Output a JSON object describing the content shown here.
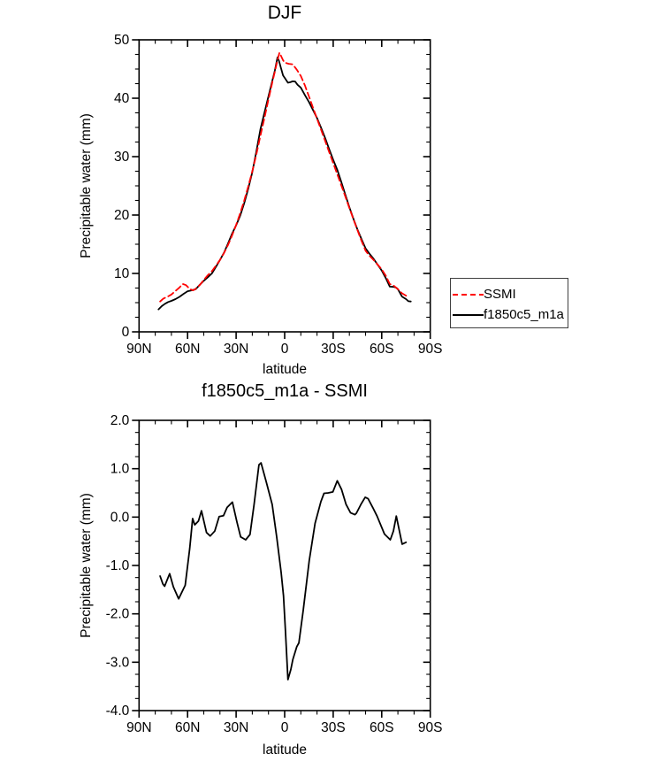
{
  "page": {
    "background": "#ffffff"
  },
  "colors": {
    "ssmi_red": "#ff0000",
    "model_black": "#000000",
    "legend_border": "#3f3f3f"
  },
  "legend": {
    "position": "outside-right-of-top-chart"
  },
  "chart_data": [
    {
      "id": "top",
      "type": "line",
      "title": "DJF",
      "xlabel": "latitude",
      "ylabel": "Precipitable water (mm)",
      "xlim": [
        90,
        -90
      ],
      "ylim": [
        0,
        50
      ],
      "grid": false,
      "x_major_ticks": [
        {
          "value": 90,
          "label": "90N"
        },
        {
          "value": 60,
          "label": "60N"
        },
        {
          "value": 30,
          "label": "30N"
        },
        {
          "value": 0,
          "label": "0"
        },
        {
          "value": -30,
          "label": "30S"
        },
        {
          "value": -60,
          "label": "60S"
        },
        {
          "value": -90,
          "label": "90S"
        }
      ],
      "x_minor_step": 10,
      "y_major_ticks": [
        {
          "value": 0,
          "label": "0"
        },
        {
          "value": 10,
          "label": "10"
        },
        {
          "value": 20,
          "label": "20"
        },
        {
          "value": 30,
          "label": "30"
        },
        {
          "value": 40,
          "label": "40"
        },
        {
          "value": 50,
          "label": "50"
        }
      ],
      "y_minor_step": 2.5,
      "series": [
        {
          "name": "SSMI",
          "color": "#ff0000",
          "dash": "dashed",
          "x": [
            77,
            75,
            72.5,
            70,
            67.5,
            65,
            63,
            61,
            58.5,
            56.5,
            55,
            52.5,
            50,
            47.5,
            45,
            42.5,
            40,
            37.5,
            35,
            32.5,
            30,
            27.5,
            25,
            22.5,
            20,
            17.5,
            15,
            12.5,
            10,
            7.5,
            6,
            5,
            3.2,
            2.5,
            1,
            0,
            -2.5,
            -5,
            -7.5,
            -10,
            -12.5,
            -15,
            -17.5,
            -20,
            -22.5,
            -25,
            -27.5,
            -30,
            -32.5,
            -35,
            -37.5,
            -40,
            -42.5,
            -45,
            -47.5,
            -50,
            -52.5,
            -55,
            -57.5,
            -60,
            -62.5,
            -65,
            -67.5,
            -70,
            -72.5,
            -75,
            -76
          ],
          "y": [
            5.2,
            5.7,
            6.0,
            6.4,
            7.0,
            7.6,
            8.2,
            8.0,
            7.3,
            7.1,
            7.4,
            8.0,
            8.9,
            9.7,
            10.4,
            11.3,
            12.3,
            13.5,
            14.9,
            16.5,
            18.3,
            20.3,
            22.5,
            24.9,
            27.5,
            30.4,
            33.6,
            36.6,
            39.8,
            42.9,
            44.6,
            45.9,
            47.8,
            47.4,
            46.5,
            46.1,
            45.9,
            45.8,
            44.9,
            43.8,
            42.2,
            40.3,
            38.4,
            36.5,
            34.6,
            32.7,
            30.8,
            28.9,
            27.0,
            25.1,
            23.2,
            21.2,
            19.3,
            17.4,
            15.6,
            13.9,
            13.0,
            12.3,
            11.5,
            10.7,
            9.6,
            8.2,
            7.9,
            7.3,
            6.6,
            6.2,
            6.0
          ]
        },
        {
          "name": "f1850c5_m1a",
          "color": "#000000",
          "dash": "solid",
          "x": [
            78,
            76,
            74,
            72,
            70,
            67.5,
            65,
            62.5,
            60,
            57.5,
            55,
            52.5,
            50,
            47.5,
            45,
            42.5,
            40,
            37.5,
            35,
            32.5,
            30,
            27.5,
            25,
            22.5,
            20,
            17.5,
            15,
            12.5,
            10,
            7.5,
            6,
            4.4,
            3.5,
            2.5,
            1,
            0,
            -2,
            -3.5,
            -5,
            -6.5,
            -8,
            -10,
            -12.5,
            -15,
            -17.5,
            -20,
            -22.5,
            -25,
            -27.5,
            -30,
            -32.5,
            -35,
            -37.5,
            -40,
            -42.5,
            -45,
            -47.5,
            -50,
            -52.5,
            -55,
            -57.5,
            -60,
            -62.5,
            -65,
            -67.5,
            -69,
            -70,
            -72.5,
            -75,
            -76.5,
            -78
          ],
          "y": [
            3.85,
            4.4,
            4.8,
            5.1,
            5.3,
            5.6,
            6.0,
            6.5,
            6.95,
            7.1,
            7.3,
            8.05,
            8.75,
            9.35,
            10.0,
            11.1,
            12.3,
            13.55,
            15.15,
            16.8,
            18.25,
            19.9,
            22.05,
            24.5,
            27.35,
            30.9,
            34.7,
            37.5,
            40.35,
            43.15,
            44.8,
            47.0,
            46.4,
            45.4,
            43.9,
            43.5,
            42.65,
            42.75,
            42.9,
            42.85,
            42.3,
            41.8,
            40.55,
            39.35,
            38.0,
            36.6,
            34.95,
            33.2,
            31.3,
            29.45,
            27.75,
            25.7,
            23.5,
            21.35,
            19.35,
            17.5,
            15.9,
            14.3,
            13.35,
            12.5,
            11.5,
            10.5,
            9.2,
            7.75,
            7.7,
            7.55,
            7.3,
            6.05,
            5.6,
            5.25,
            5.2
          ]
        }
      ]
    },
    {
      "id": "bottom",
      "type": "line",
      "title": "f1850c5_m1a - SSMI",
      "xlabel": "latitude",
      "ylabel": "Precipitable water (mm)",
      "xlim": [
        90,
        -90
      ],
      "ylim": [
        -4.0,
        2.0
      ],
      "grid": false,
      "x_major_ticks": [
        {
          "value": 90,
          "label": "90N"
        },
        {
          "value": 60,
          "label": "60N"
        },
        {
          "value": 30,
          "label": "30N"
        },
        {
          "value": 0,
          "label": "0"
        },
        {
          "value": -30,
          "label": "30S"
        },
        {
          "value": -60,
          "label": "60S"
        },
        {
          "value": -90,
          "label": "90S"
        }
      ],
      "x_minor_step": 10,
      "y_major_ticks": [
        {
          "value": -4.0,
          "label": "-4.0"
        },
        {
          "value": -3.0,
          "label": "-3.0"
        },
        {
          "value": -2.0,
          "label": "-2.0"
        },
        {
          "value": -1.0,
          "label": "-1.0"
        },
        {
          "value": 0.0,
          "label": "0.0"
        },
        {
          "value": 1.0,
          "label": "1.0"
        },
        {
          "value": 2.0,
          "label": "2.0"
        }
      ],
      "y_minor_step": 0.25,
      "series": [
        {
          "name": "f1850c5_m1a - SSMI",
          "color": "#000000",
          "dash": "solid",
          "x": [
            77,
            75.3,
            74.2,
            71.1,
            68.8,
            65.5,
            61.5,
            58.7,
            56.9,
            55.6,
            53.3,
            51.4,
            48.3,
            46,
            43.2,
            40.5,
            37.8,
            35.6,
            32.3,
            29.5,
            27.2,
            24.1,
            21.4,
            18.9,
            15.9,
            14.6,
            11.3,
            7.7,
            4.9,
            2.2,
            0.7,
            -0.5,
            -2,
            -3.8,
            -5.1,
            -7.5,
            -8.8,
            -11.5,
            -15.2,
            -18.8,
            -22.4,
            -24.3,
            -27,
            -29.8,
            -32.5,
            -35.2,
            -38,
            -40.7,
            -43.4,
            -44.3,
            -47.1,
            -49.8,
            -51.6,
            -54.4,
            -57.1,
            -61.7,
            -65.3,
            -67.2,
            -69,
            -72.6,
            -75
          ],
          "y": [
            -1.22,
            -1.38,
            -1.43,
            -1.17,
            -1.44,
            -1.69,
            -1.41,
            -0.65,
            -0.03,
            -0.16,
            -0.08,
            0.13,
            -0.32,
            -0.39,
            -0.29,
            0.01,
            0.03,
            0.2,
            0.31,
            -0.1,
            -0.41,
            -0.47,
            -0.36,
            0.26,
            1.08,
            1.12,
            0.72,
            0.26,
            -0.41,
            -1.14,
            -1.63,
            -2.36,
            -3.36,
            -3.15,
            -2.94,
            -2.68,
            -2.6,
            -1.93,
            -0.9,
            -0.13,
            0.32,
            0.49,
            0.5,
            0.52,
            0.75,
            0.57,
            0.26,
            0.09,
            0.05,
            0.08,
            0.26,
            0.41,
            0.38,
            0.2,
            0.02,
            -0.35,
            -0.47,
            -0.29,
            0.02,
            -0.56,
            -0.52
          ]
        }
      ]
    }
  ]
}
